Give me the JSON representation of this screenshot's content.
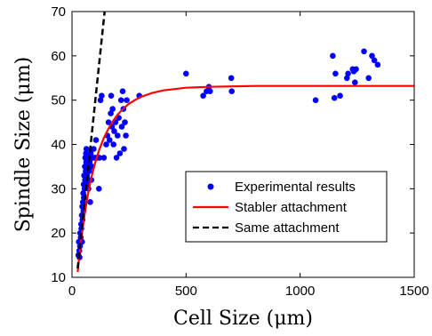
{
  "chart_data": {
    "type": "scatter",
    "title": "",
    "xlabel": "Cell Size (μm)",
    "ylabel": "Spindle Size (μm)",
    "xlim": [
      0,
      1500
    ],
    "ylim": [
      10,
      70
    ],
    "xticks": [
      0,
      500,
      1000,
      1500
    ],
    "yticks": [
      10,
      20,
      30,
      40,
      50,
      60,
      70
    ],
    "grid": false,
    "legend_position": "lower-right",
    "series": [
      {
        "name": "Experimental results",
        "kind": "scatter",
        "color": "#0000ff",
        "points": [
          [
            28,
            15
          ],
          [
            30,
            18
          ],
          [
            32,
            16
          ],
          [
            33,
            14.5
          ],
          [
            35,
            17
          ],
          [
            36,
            20
          ],
          [
            38,
            19
          ],
          [
            40,
            22
          ],
          [
            41,
            21
          ],
          [
            43,
            24
          ],
          [
            44,
            18
          ],
          [
            45,
            26
          ],
          [
            46,
            23
          ],
          [
            48,
            27
          ],
          [
            49,
            29
          ],
          [
            50,
            25
          ],
          [
            51,
            31
          ],
          [
            52,
            28
          ],
          [
            53,
            33
          ],
          [
            55,
            30
          ],
          [
            56,
            35
          ],
          [
            57,
            32
          ],
          [
            58,
            37
          ],
          [
            60,
            34
          ],
          [
            61,
            38
          ],
          [
            62,
            36
          ],
          [
            63,
            39
          ],
          [
            65,
            31
          ],
          [
            66,
            33
          ],
          [
            68,
            35
          ],
          [
            70,
            37
          ],
          [
            72,
            30
          ],
          [
            74,
            32
          ],
          [
            76,
            34
          ],
          [
            78,
            36
          ],
          [
            80,
            27
          ],
          [
            82,
            38
          ],
          [
            85,
            32
          ],
          [
            88,
            35
          ],
          [
            92,
            37
          ],
          [
            95,
            39
          ],
          [
            100,
            37
          ],
          [
            105,
            41
          ],
          [
            110,
            37
          ],
          [
            118,
            30
          ],
          [
            120,
            37
          ],
          [
            125,
            50
          ],
          [
            130,
            51
          ],
          [
            140,
            37
          ],
          [
            150,
            40
          ],
          [
            155,
            42
          ],
          [
            160,
            45
          ],
          [
            165,
            41
          ],
          [
            170,
            47
          ],
          [
            172,
            51
          ],
          [
            175,
            44
          ],
          [
            178,
            48
          ],
          [
            182,
            40
          ],
          [
            185,
            43
          ],
          [
            190,
            45
          ],
          [
            195,
            37
          ],
          [
            200,
            42
          ],
          [
            205,
            46
          ],
          [
            210,
            38
          ],
          [
            215,
            50
          ],
          [
            218,
            44
          ],
          [
            222,
            52
          ],
          [
            225,
            48
          ],
          [
            228,
            39
          ],
          [
            232,
            45
          ],
          [
            236,
            42
          ],
          [
            240,
            50
          ],
          [
            295,
            51
          ],
          [
            500,
            56
          ],
          [
            575,
            51
          ],
          [
            590,
            52
          ],
          [
            600,
            53
          ],
          [
            605,
            52
          ],
          [
            698,
            55
          ],
          [
            700,
            52
          ],
          [
            1068,
            50
          ],
          [
            1143,
            60
          ],
          [
            1150,
            50.5
          ],
          [
            1155,
            56
          ],
          [
            1175,
            51
          ],
          [
            1205,
            55
          ],
          [
            1210,
            56
          ],
          [
            1230,
            57
          ],
          [
            1235,
            56.5
          ],
          [
            1240,
            54
          ],
          [
            1245,
            57
          ],
          [
            1280,
            61
          ],
          [
            1300,
            55
          ],
          [
            1315,
            60
          ],
          [
            1325,
            59
          ],
          [
            1340,
            58
          ]
        ]
      },
      {
        "name": "Stabler attachment",
        "kind": "line",
        "color": "#ff0000",
        "dash": "solid",
        "x": [
          25,
          30,
          40,
          50,
          60,
          70,
          80,
          90,
          100,
          120,
          140,
          160,
          180,
          200,
          225,
          250,
          275,
          300,
          350,
          400,
          500,
          600,
          800,
          1000,
          1200,
          1500
        ],
        "y": [
          11.2,
          13.8,
          18.4,
          22.3,
          25.8,
          28.8,
          31.4,
          33.6,
          35.6,
          38.9,
          41.5,
          43.6,
          45.3,
          46.7,
          48.1,
          49.2,
          50.0,
          50.7,
          51.6,
          52.2,
          52.8,
          53.0,
          53.2,
          53.2,
          53.2,
          53.2
        ]
      },
      {
        "name": "Same attachment",
        "kind": "line",
        "color": "#000000",
        "dash": "dashed",
        "x": [
          25,
          143
        ],
        "y": [
          12,
          70
        ]
      }
    ]
  }
}
